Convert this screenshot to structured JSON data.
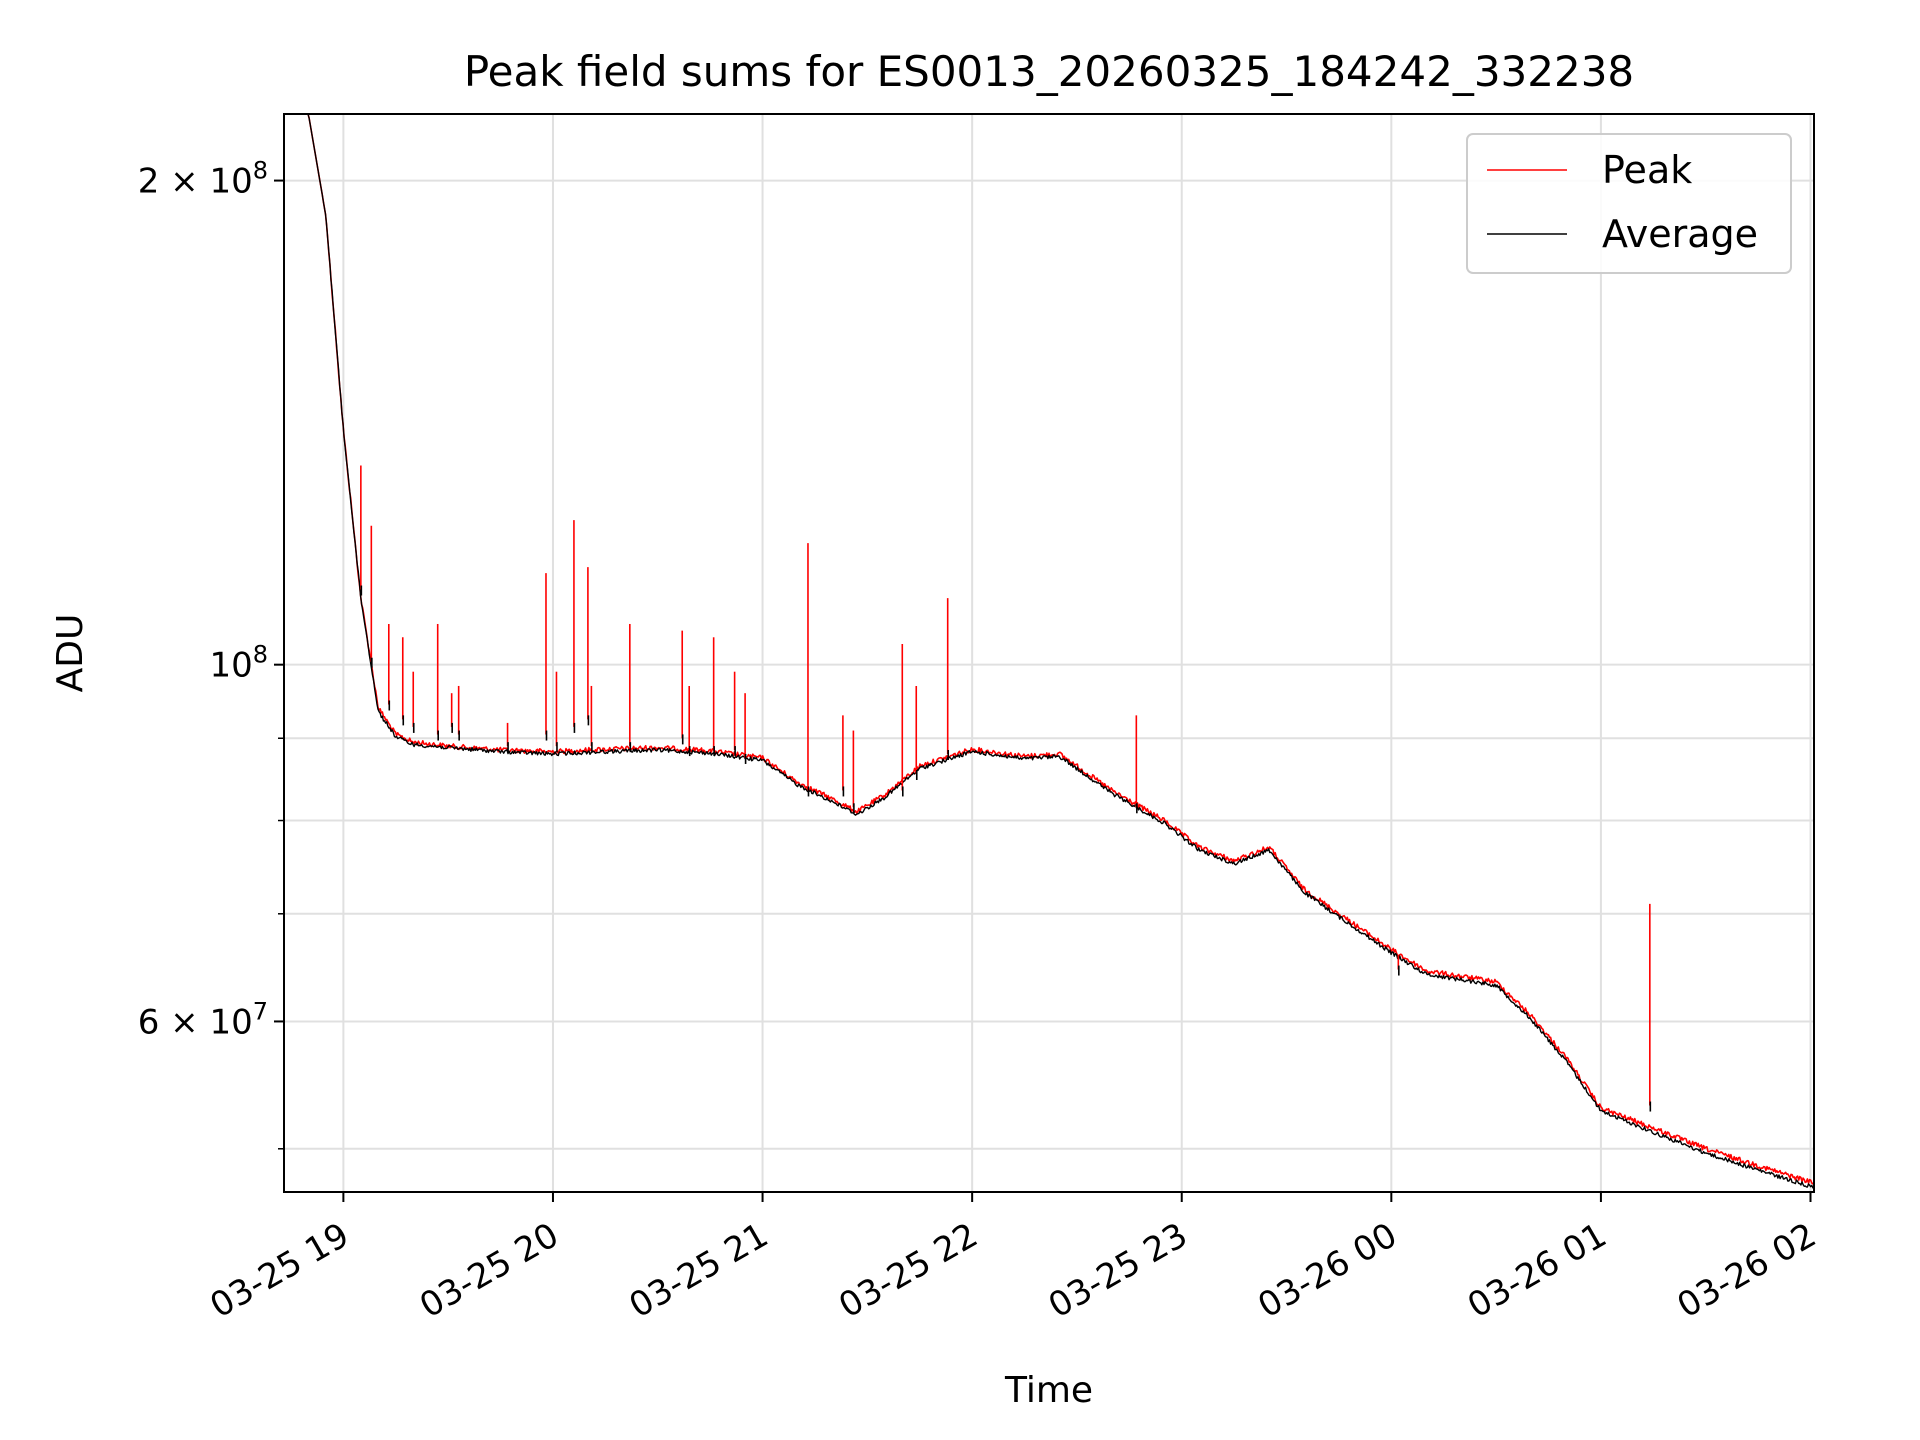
{
  "chart_data": {
    "type": "line",
    "title": "Peak field sums for ES0013_20260325_184242_332238",
    "xlabel": "Time",
    "ylabel": "ADU",
    "y_scale": "log",
    "ylim": [
      47000000,
      220000000
    ],
    "xlim": [
      "2026-03-25 18:43",
      "2026-03-26 02:01"
    ],
    "grid": true,
    "legend_position": "upper right",
    "x_ticks": [
      "03-25 19",
      "03-25 20",
      "03-25 21",
      "03-25 22",
      "03-25 23",
      "03-26 00",
      "03-26 01",
      "03-26 02"
    ],
    "y_major_ticks": [
      {
        "value": 200000000,
        "mantissa": "2",
        "exponent": "8",
        "times": true
      },
      {
        "value": 100000000,
        "mantissa": "10",
        "exponent": "8",
        "times": false
      },
      {
        "value": 60000000,
        "mantissa": "6",
        "exponent": "7",
        "times": true
      }
    ],
    "y_minor_ticks": [
      50000000,
      70000000,
      80000000,
      90000000
    ],
    "colors": {
      "Peak": "#ff0000",
      "Average": "#000000",
      "grid": "#e0e0e0"
    },
    "series": [
      {
        "name": "Peak",
        "x": [
          "2026-03-25 18:43",
          "2026-03-25 18:50",
          "2026-03-25 18:55",
          "2026-03-25 19:00",
          "2026-03-25 19:05",
          "2026-03-25 19:10",
          "2026-03-25 19:15",
          "2026-03-25 19:20",
          "2026-03-25 19:30",
          "2026-03-25 19:45",
          "2026-03-25 20:00",
          "2026-03-25 20:15",
          "2026-03-25 20:30",
          "2026-03-25 20:45",
          "2026-03-25 21:00",
          "2026-03-25 21:10",
          "2026-03-25 21:20",
          "2026-03-25 21:27",
          "2026-03-25 21:35",
          "2026-03-25 21:45",
          "2026-03-25 22:00",
          "2026-03-25 22:15",
          "2026-03-25 22:25",
          "2026-03-25 22:40",
          "2026-03-25 22:55",
          "2026-03-25 23:05",
          "2026-03-25 23:15",
          "2026-03-25 23:25",
          "2026-03-25 23:35",
          "2026-03-25 23:45",
          "2026-03-26 00:00",
          "2026-03-26 00:10",
          "2026-03-26 00:20",
          "2026-03-26 00:30",
          "2026-03-26 00:40",
          "2026-03-26 00:50",
          "2026-03-26 01:00",
          "2026-03-26 01:15",
          "2026-03-26 01:30",
          "2026-03-26 01:45",
          "2026-03-26 02:01"
        ],
        "values": [
          222000000,
          220000000,
          190000000,
          140000000,
          110000000,
          94000000,
          90500000,
          89500000,
          89000000,
          88500000,
          88300000,
          88600000,
          88800000,
          88400000,
          87500000,
          84500000,
          82500000,
          81000000,
          83000000,
          86500000,
          88600000,
          87700000,
          88000000,
          83500000,
          80000000,
          77000000,
          75500000,
          77000000,
          72500000,
          70000000,
          66500000,
          64500000,
          64000000,
          63500000,
          60500000,
          57000000,
          53000000,
          51500000,
          50000000,
          48800000,
          47600000
        ]
      },
      {
        "name": "Average",
        "x": [
          "2026-03-25 18:43",
          "2026-03-25 18:50",
          "2026-03-25 18:55",
          "2026-03-25 19:00",
          "2026-03-25 19:05",
          "2026-03-25 19:10",
          "2026-03-25 19:15",
          "2026-03-25 19:20",
          "2026-03-25 19:30",
          "2026-03-25 19:45",
          "2026-03-25 20:00",
          "2026-03-25 20:15",
          "2026-03-25 20:30",
          "2026-03-25 20:45",
          "2026-03-25 21:00",
          "2026-03-25 21:10",
          "2026-03-25 21:20",
          "2026-03-25 21:27",
          "2026-03-25 21:35",
          "2026-03-25 21:45",
          "2026-03-25 22:00",
          "2026-03-25 22:15",
          "2026-03-25 22:25",
          "2026-03-25 22:40",
          "2026-03-25 22:55",
          "2026-03-25 23:05",
          "2026-03-25 23:15",
          "2026-03-25 23:25",
          "2026-03-25 23:35",
          "2026-03-25 23:45",
          "2026-03-26 00:00",
          "2026-03-26 00:10",
          "2026-03-26 00:20",
          "2026-03-26 00:30",
          "2026-03-26 00:40",
          "2026-03-26 00:50",
          "2026-03-26 01:00",
          "2026-03-26 01:15",
          "2026-03-26 01:30",
          "2026-03-26 01:45",
          "2026-03-26 02:01"
        ],
        "values": [
          222000000,
          220000000,
          190000000,
          140000000,
          110000000,
          93500000,
          90200000,
          89200000,
          88800000,
          88300000,
          88000000,
          88300000,
          88500000,
          88100000,
          87200000,
          84200000,
          82200000,
          80700000,
          82700000,
          86200000,
          88300000,
          87400000,
          87700000,
          83200000,
          79700000,
          76700000,
          75200000,
          76700000,
          72200000,
          69700000,
          66200000,
          64200000,
          63700000,
          63200000,
          60200000,
          56700000,
          52800000,
          51200000,
          49700000,
          48500000,
          47300000
        ]
      }
    ],
    "spikes": {
      "x": [
        "2026-03-25 19:05",
        "2026-03-25 19:08",
        "2026-03-25 19:13",
        "2026-03-25 19:17",
        "2026-03-25 19:20",
        "2026-03-25 19:27",
        "2026-03-25 19:31",
        "2026-03-25 19:33",
        "2026-03-25 19:47",
        "2026-03-25 19:58",
        "2026-03-25 20:01",
        "2026-03-25 20:06",
        "2026-03-25 20:10",
        "2026-03-25 20:11",
        "2026-03-25 20:22",
        "2026-03-25 20:37",
        "2026-03-25 20:39",
        "2026-03-25 20:46",
        "2026-03-25 20:52",
        "2026-03-25 20:55",
        "2026-03-25 21:13",
        "2026-03-25 21:23",
        "2026-03-25 21:26",
        "2026-03-25 21:40",
        "2026-03-25 21:44",
        "2026-03-25 21:53",
        "2026-03-25 22:47",
        "2026-03-26 00:02",
        "2026-03-26 01:14"
      ],
      "peak": [
        133000000,
        122000000,
        106000000,
        104000000,
        99000000,
        106000000,
        96000000,
        97000000,
        92000000,
        114000000,
        99000000,
        123000000,
        115000000,
        97000000,
        106000000,
        105000000,
        97000000,
        104000000,
        99000000,
        96000000,
        119000000,
        93000000,
        91000000,
        103000000,
        97000000,
        110000000,
        93000000,
        66000000,
        71000000
      ],
      "average": [
        112000000,
        101000000,
        95000000,
        93000000,
        92000000,
        91000000,
        92000000,
        91000000,
        89500000,
        91000000,
        89500000,
        92000000,
        93000000,
        89500000,
        89500000,
        90500000,
        89000000,
        89000000,
        89000000,
        88000000,
        84000000,
        84000000,
        82000000,
        84000000,
        86000000,
        88500000,
        82000000,
        65000000,
        53500000
      ]
    }
  }
}
